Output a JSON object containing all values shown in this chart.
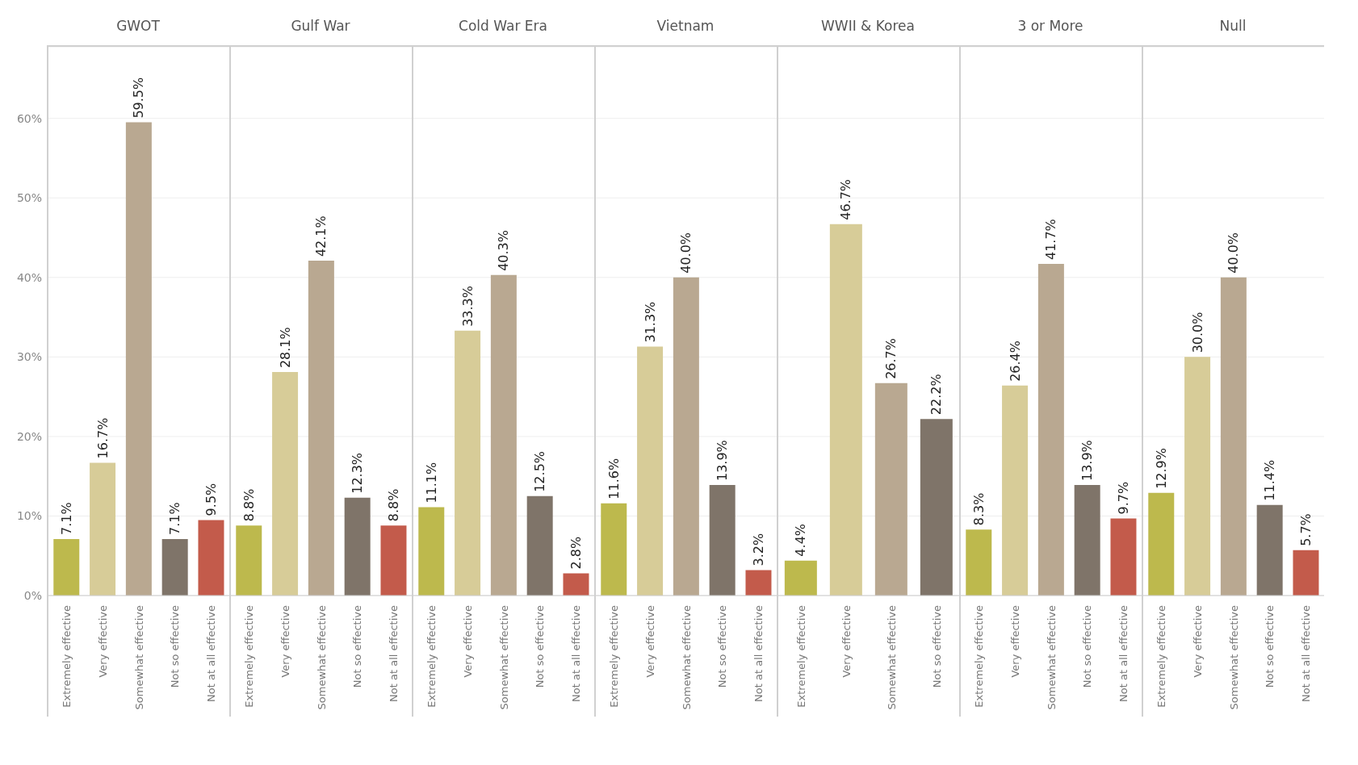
{
  "chart_data": [
    {
      "type": "bar",
      "title": "GWOT",
      "categories": [
        "Extremely effective",
        "Very effective",
        "Somewhat effective",
        "Not so effective",
        "Not at all effective"
      ],
      "values": [
        7.1,
        16.7,
        59.5,
        7.1,
        9.5
      ],
      "value_labels": [
        "7.1%",
        "16.7%",
        "59.5%",
        "7.1%",
        "9.5%"
      ],
      "colors": [
        "#bdb94d",
        "#d7cc98",
        "#b9a891",
        "#7f7469",
        "#c35b4b"
      ],
      "ylim": [
        0,
        69
      ],
      "yticks": [
        {
          "value": 0,
          "label": "0%"
        },
        {
          "value": 10,
          "label": "10%"
        },
        {
          "value": 20,
          "label": "20%"
        },
        {
          "value": 30,
          "label": "30%"
        },
        {
          "value": 40,
          "label": "40%"
        },
        {
          "value": 50,
          "label": "50%"
        },
        {
          "value": 60,
          "label": "60%"
        }
      ],
      "grid": "y"
    },
    {
      "type": "bar",
      "title": "Gulf War",
      "categories": [
        "Extremely effective",
        "Very effective",
        "Somewhat effective",
        "Not so effective",
        "Not at all effective"
      ],
      "values": [
        8.8,
        28.1,
        42.1,
        12.3,
        8.8
      ],
      "value_labels": [
        "8.8%",
        "28.1%",
        "42.1%",
        "12.3%",
        "8.8%"
      ],
      "colors": [
        "#bdb94d",
        "#d7cc98",
        "#b9a891",
        "#7f7469",
        "#c35b4b"
      ],
      "ylim": [
        0,
        69
      ],
      "yticks": [
        {
          "value": 0,
          "label": null
        },
        {
          "value": 10,
          "label": null
        },
        {
          "value": 20,
          "label": null
        },
        {
          "value": 30,
          "label": null
        },
        {
          "value": 40,
          "label": null
        },
        {
          "value": 50,
          "label": null
        },
        {
          "value": 60,
          "label": null
        }
      ],
      "grid": "y",
      "tick_labels": "x"
    },
    {
      "type": "bar",
      "title": "Cold War Era",
      "categories": [
        "Extremely effective",
        "Very effective",
        "Somewhat effective",
        "Not so effective",
        "Not at all effective"
      ],
      "values": [
        11.1,
        33.3,
        40.3,
        12.5,
        2.8
      ],
      "value_labels": [
        "11.1%",
        "33.3%",
        "40.3%",
        "12.5%",
        "2.8%"
      ],
      "colors": [
        "#bdb94d",
        "#d7cc98",
        "#b9a891",
        "#7f7469",
        "#c35b4b"
      ],
      "ylim": [
        0,
        69
      ],
      "yticks": [
        {
          "value": 0,
          "label": null
        },
        {
          "value": 10,
          "label": null
        },
        {
          "value": 20,
          "label": null
        },
        {
          "value": 30,
          "label": null
        },
        {
          "value": 40,
          "label": null
        },
        {
          "value": 50,
          "label": null
        },
        {
          "value": 60,
          "label": null
        }
      ],
      "grid": "y",
      "tick_labels": "x"
    },
    {
      "type": "bar",
      "title": "Vietnam",
      "categories": [
        "Extremely effective",
        "Very effective",
        "Somewhat effective",
        "Not so effective",
        "Not at all effective"
      ],
      "values": [
        11.6,
        31.3,
        40.0,
        13.9,
        3.2
      ],
      "value_labels": [
        "11.6%",
        "31.3%",
        "40.0%",
        "13.9%",
        "3.2%"
      ],
      "colors": [
        "#bdb94d",
        "#d7cc98",
        "#b9a891",
        "#7f7469",
        "#c35b4b"
      ],
      "ylim": [
        0,
        69
      ],
      "yticks": [
        {
          "value": 0,
          "label": null
        },
        {
          "value": 10,
          "label": null
        },
        {
          "value": 20,
          "label": null
        },
        {
          "value": 30,
          "label": null
        },
        {
          "value": 40,
          "label": null
        },
        {
          "value": 50,
          "label": null
        },
        {
          "value": 60,
          "label": null
        }
      ],
      "grid": "y",
      "tick_labels": "x"
    },
    {
      "type": "bar",
      "title": "WWII & Korea",
      "categories": [
        "Extremely effective",
        "Very effective",
        "Somewhat effective",
        "Not so effective"
      ],
      "values": [
        4.4,
        46.7,
        26.7,
        22.2
      ],
      "value_labels": [
        "4.4%",
        "46.7%",
        "26.7%",
        "22.2%"
      ],
      "colors": [
        "#bdb94d",
        "#d7cc98",
        "#b9a891",
        "#7f7469"
      ],
      "ylim": [
        0,
        69
      ],
      "yticks": [
        {
          "value": 0,
          "label": null
        },
        {
          "value": 10,
          "label": null
        },
        {
          "value": 20,
          "label": null
        },
        {
          "value": 30,
          "label": null
        },
        {
          "value": 40,
          "label": null
        },
        {
          "value": 50,
          "label": null
        },
        {
          "value": 60,
          "label": null
        }
      ],
      "grid": "y",
      "tick_labels": "x"
    },
    {
      "type": "bar",
      "title": "3 or More",
      "categories": [
        "Extremely effective",
        "Very effective",
        "Somewhat effective",
        "Not so effective",
        "Not at all effective"
      ],
      "values": [
        8.3,
        26.4,
        41.7,
        13.9,
        9.7
      ],
      "value_labels": [
        "8.3%",
        "26.4%",
        "41.7%",
        "13.9%",
        "9.7%"
      ],
      "colors": [
        "#bdb94d",
        "#d7cc98",
        "#b9a891",
        "#7f7469",
        "#c35b4b"
      ],
      "ylim": [
        0,
        69
      ],
      "yticks": [
        {
          "value": 0,
          "label": null
        },
        {
          "value": 10,
          "label": null
        },
        {
          "value": 20,
          "label": null
        },
        {
          "value": 30,
          "label": null
        },
        {
          "value": 40,
          "label": null
        },
        {
          "value": 50,
          "label": null
        },
        {
          "value": 60,
          "label": null
        }
      ],
      "grid": "y",
      "tick_labels": "x"
    },
    {
      "type": "bar",
      "title": "Null",
      "categories": [
        "Extremely effective",
        "Very effective",
        "Somewhat effective",
        "Not so effective",
        "Not at all effective"
      ],
      "values": [
        12.9,
        30.0,
        40.0,
        11.4,
        5.7
      ],
      "value_labels": [
        "12.9%",
        "30.0%",
        "40.0%",
        "11.4%",
        "5.7%"
      ],
      "colors": [
        "#bdb94d",
        "#d7cc98",
        "#b9a891",
        "#7f7469",
        "#c35b4b"
      ],
      "ylim": [
        0,
        69
      ],
      "yticks": [
        {
          "value": 0,
          "label": null
        },
        {
          "value": 10,
          "label": null
        },
        {
          "value": 20,
          "label": null
        },
        {
          "value": 30,
          "label": null
        },
        {
          "value": 40,
          "label": null
        },
        {
          "value": 50,
          "label": null
        },
        {
          "value": 60,
          "label": null
        }
      ],
      "grid": "y",
      "tick_labels": "x"
    }
  ]
}
